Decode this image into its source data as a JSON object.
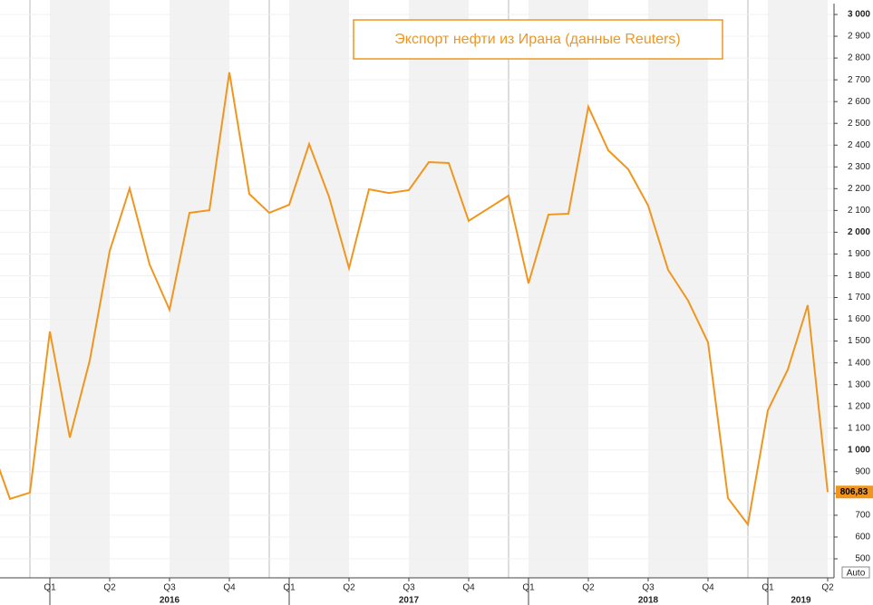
{
  "chart_data": {
    "type": "line",
    "title": "Экспорт нефти из Ирана (данные Reuters)",
    "categories": [
      null,
      null,
      null,
      "Q1",
      null,
      null,
      "Q2",
      null,
      null,
      "Q3",
      null,
      null,
      "Q4",
      null,
      null,
      "Q1",
      null,
      null,
      "Q2",
      null,
      null,
      "Q3",
      null,
      null,
      "Q4",
      null,
      null,
      "Q1",
      null,
      null,
      "Q2",
      null,
      null,
      "Q3",
      null,
      null,
      "Q4",
      null,
      null,
      "Q1",
      null,
      null,
      "Q2"
    ],
    "years": [
      "2016",
      "2017",
      "2018",
      "2019"
    ],
    "series": [
      {
        "name": "Экспорт нефти из Ирана",
        "color": "#f0961e",
        "values": [
          1032,
          775,
          804,
          1544,
          1057,
          1411,
          1914,
          2201,
          1852,
          1644,
          2089,
          2101,
          2734,
          2176,
          2089,
          2126,
          2405,
          2162,
          1835,
          2197,
          2180,
          2193,
          2322,
          2318,
          2052,
          2110,
          2168,
          1765,
          2081,
          2085,
          2576,
          2376,
          2289,
          2122,
          1827,
          1686,
          1494,
          779,
          658,
          1182,
          1369,
          1665,
          806.83
        ],
        "value_labels": [
          null,
          null,
          null,
          null,
          null,
          null,
          null,
          null,
          null,
          null,
          null,
          null,
          null,
          null,
          null,
          null,
          null,
          null,
          null,
          null,
          null,
          null,
          null,
          null,
          null,
          null,
          null,
          null,
          null,
          null,
          null,
          null,
          null,
          null,
          null,
          null,
          null,
          null,
          null,
          null,
          null,
          null,
          "806,83"
        ]
      }
    ],
    "ylim": [
      500,
      3000
    ],
    "yticks": [
      500,
      600,
      700,
      800,
      900,
      {
        "value": 1000,
        "label": "1 000"
      },
      {
        "value": 1100,
        "label": "1 100"
      },
      {
        "value": 1200,
        "label": "1 200"
      },
      {
        "value": 1300,
        "label": "1 300"
      },
      {
        "value": 1400,
        "label": "1 400"
      },
      {
        "value": 1500,
        "label": "1 500"
      },
      {
        "value": 1600,
        "label": "1 600"
      },
      {
        "value": 1700,
        "label": "1 700"
      },
      {
        "value": 1800,
        "label": "1 800"
      },
      {
        "value": 1900,
        "label": "1 900"
      },
      {
        "value": 2000,
        "label": "2 000"
      },
      {
        "value": 2100,
        "label": "2 100"
      },
      {
        "value": 2200,
        "label": "2 200"
      },
      {
        "value": 2300,
        "label": "2 300"
      },
      {
        "value": 2400,
        "label": "2 400"
      },
      {
        "value": 2500,
        "label": "2 500"
      },
      {
        "value": 2600,
        "label": "2 600"
      },
      {
        "value": 2700,
        "label": "2 700"
      },
      {
        "value": 2800,
        "label": "2 800"
      },
      {
        "value": 2900,
        "label": "2 900"
      },
      {
        "value": 3000,
        "label": "3 000"
      }
    ],
    "grid": true,
    "auto_button": "Auto"
  }
}
